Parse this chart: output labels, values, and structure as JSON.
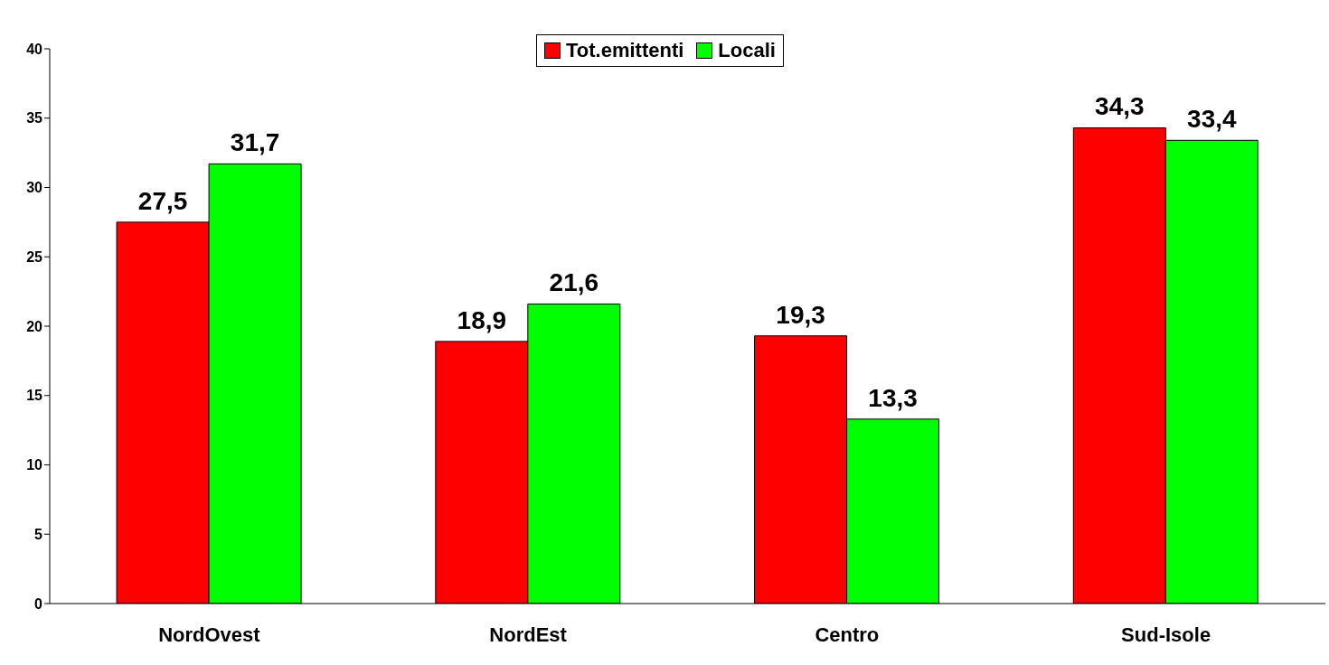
{
  "chart_data": {
    "type": "bar",
    "categories": [
      "NordOvest",
      "NordEst",
      "Centro",
      "Sud-Isole"
    ],
    "series": [
      {
        "name": "Tot.emittenti",
        "color": "#ff0000",
        "values": [
          27.5,
          18.9,
          19.3,
          34.3
        ],
        "value_labels": [
          "27,5",
          "18,9",
          "19,3",
          "34,3"
        ]
      },
      {
        "name": "Locali",
        "color": "#00ff00",
        "values": [
          31.7,
          21.6,
          13.3,
          33.4
        ],
        "value_labels": [
          "31,7",
          "21,6",
          "13,3",
          "33,4"
        ]
      }
    ],
    "ylim": [
      0,
      40
    ],
    "yticks": [
      0,
      5,
      10,
      15,
      20,
      25,
      30,
      35,
      40
    ],
    "grid": false,
    "legend": "top"
  }
}
